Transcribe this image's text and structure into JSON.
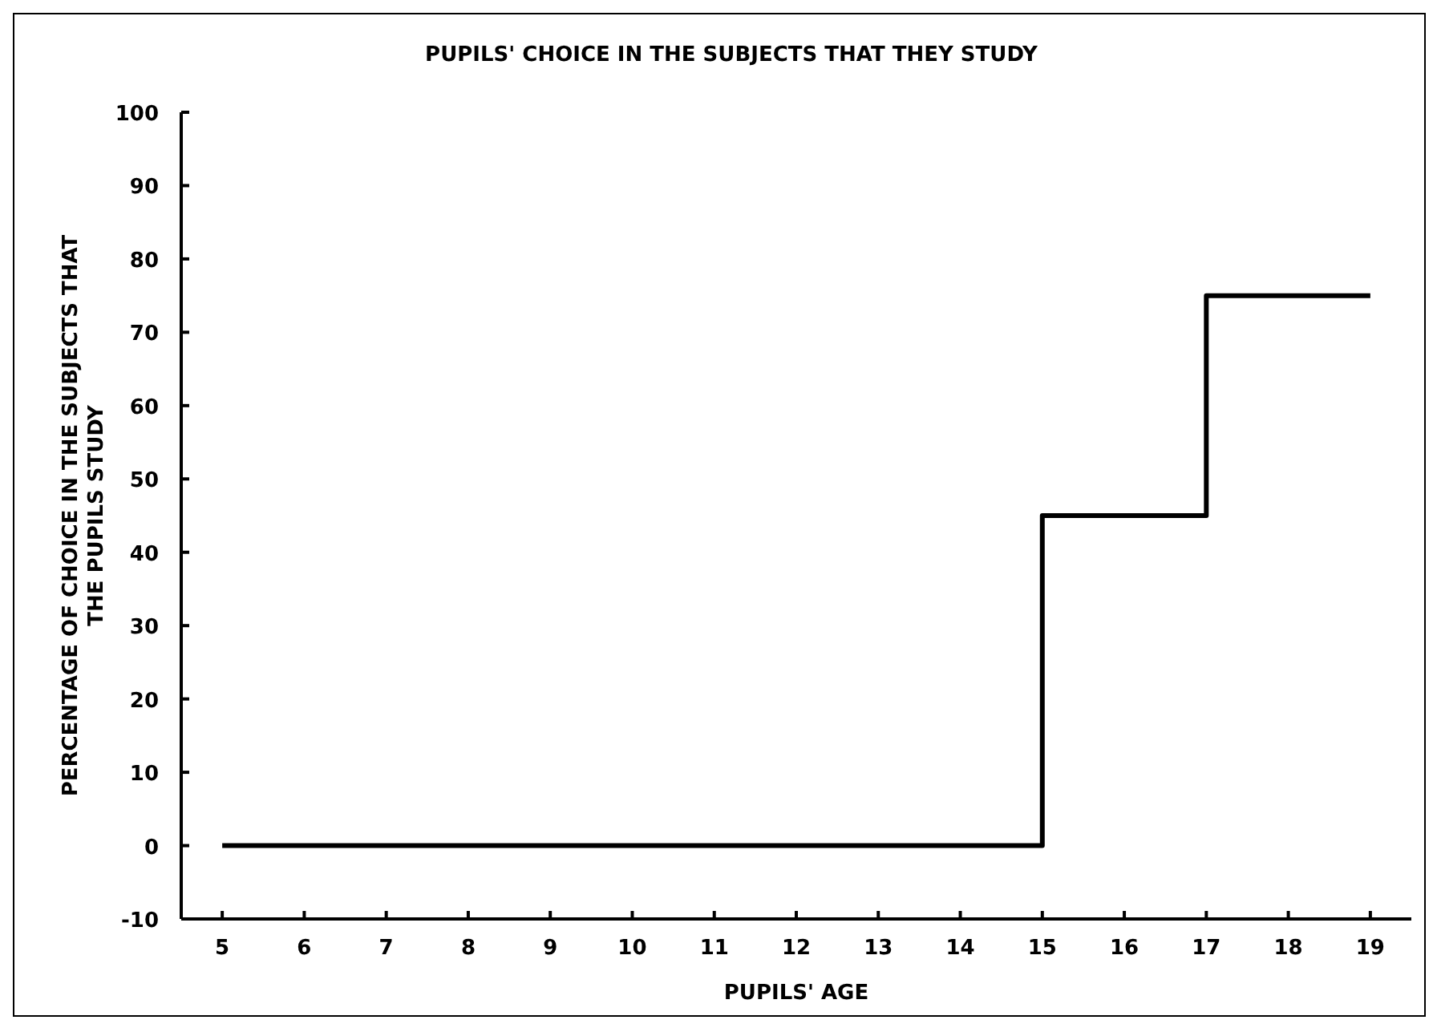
{
  "chart_data": {
    "type": "step",
    "title": "PUPILS' CHOICE IN THE SUBJECTS THAT THEY STUDY",
    "xlabel": "PUPILS' AGE",
    "ylabel": "PERCENTAGE OF CHOICE IN THE SUBJECTS THAT THE PUPILS STUDY",
    "x": [
      5,
      15,
      17,
      19
    ],
    "series": [
      {
        "color": "#000000",
        "values": [
          0,
          45,
          75,
          75
        ]
      }
    ],
    "xlim": [
      4.5,
      19.5
    ],
    "xticks": [
      5,
      6,
      7,
      8,
      9,
      10,
      11,
      12,
      13,
      14,
      15,
      16,
      17,
      18,
      19
    ],
    "ylim": [
      -10,
      100
    ],
    "yticks": [
      -10,
      0,
      10,
      20,
      30,
      40,
      50,
      60,
      70,
      80,
      90,
      100
    ],
    "grid": false,
    "marker": "none",
    "line_style": "solid"
  }
}
